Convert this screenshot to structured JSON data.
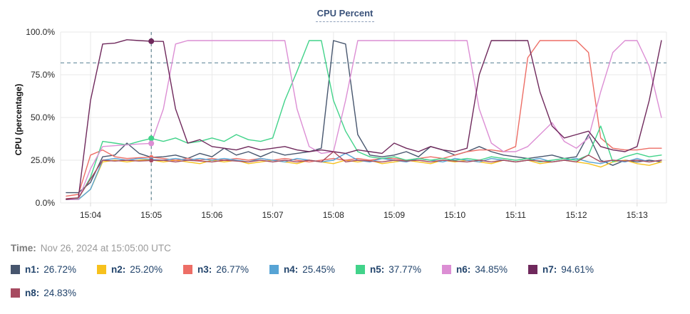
{
  "panel": {
    "title": "CPU Percent"
  },
  "time_row": {
    "label": "Time:",
    "value": "Nov 26, 2024 at 15:05:00 UTC"
  },
  "legend": [
    {
      "name": "n1:",
      "value": "26.72%",
      "color": "#47566e"
    },
    {
      "name": "n2:",
      "value": "25.20%",
      "color": "#f7c11d"
    },
    {
      "name": "n3:",
      "value": "26.77%",
      "color": "#ed6e66"
    },
    {
      "name": "n4:",
      "value": "25.45%",
      "color": "#57a4d5"
    },
    {
      "name": "n5:",
      "value": "37.77%",
      "color": "#42d38a"
    },
    {
      "name": "n6:",
      "value": "34.85%",
      "color": "#dc8ed4"
    },
    {
      "name": "n7:",
      "value": "94.61%",
      "color": "#6f295c"
    },
    {
      "name": "n8:",
      "value": "24.83%",
      "color": "#a64a60"
    }
  ],
  "chart_data": {
    "type": "line",
    "title": "CPU Percent",
    "ylabel": "CPU (percentage)",
    "xlabel": "",
    "ylim": [
      0,
      100
    ],
    "grid": true,
    "legend_position": "bottom",
    "threshold_percent": 82,
    "crosshair_minute": 5.0,
    "crosshair_time": "15:05:00",
    "yticks": [
      {
        "v": 0,
        "label": "0.0%"
      },
      {
        "v": 25,
        "label": "25.0%"
      },
      {
        "v": 50,
        "label": "50.0%"
      },
      {
        "v": 75,
        "label": "75.0%"
      },
      {
        "v": 100,
        "label": "100.0%"
      }
    ],
    "xticks": [
      {
        "m": 4,
        "label": "15:04"
      },
      {
        "m": 5,
        "label": "15:05"
      },
      {
        "m": 6,
        "label": "15:06"
      },
      {
        "m": 7,
        "label": "15:07"
      },
      {
        "m": 8,
        "label": "15:08"
      },
      {
        "m": 9,
        "label": "15:09"
      },
      {
        "m": 10,
        "label": "15:10"
      },
      {
        "m": 11,
        "label": "15:11"
      },
      {
        "m": 12,
        "label": "15:12"
      },
      {
        "m": 13,
        "label": "15:13"
      }
    ],
    "x_minutes": [
      3.6,
      3.8,
      4.0,
      4.2,
      4.4,
      4.6,
      4.8,
      5.0,
      5.2,
      5.4,
      5.6,
      5.8,
      6.0,
      6.2,
      6.4,
      6.6,
      6.8,
      7.0,
      7.2,
      7.4,
      7.6,
      7.8,
      8.0,
      8.2,
      8.4,
      8.6,
      8.8,
      9.0,
      9.2,
      9.4,
      9.6,
      9.8,
      10.0,
      10.2,
      10.4,
      10.6,
      10.8,
      11.0,
      11.2,
      11.4,
      11.6,
      11.8,
      12.0,
      12.2,
      12.4,
      12.6,
      12.8,
      13.0,
      13.2,
      13.4
    ],
    "series": [
      {
        "name": "n1",
        "color": "#47566e",
        "value_at_crosshair": 26.72,
        "values": [
          6,
          6,
          12,
          27,
          28,
          35,
          29,
          26.72,
          27,
          28,
          26,
          29,
          27,
          32,
          28,
          30,
          27,
          30,
          28,
          29,
          30,
          32,
          95,
          93,
          40,
          28,
          27,
          28,
          30,
          27,
          33,
          31,
          28,
          30,
          33,
          30,
          28,
          27,
          26,
          27,
          28,
          26,
          27,
          40,
          25,
          22,
          25,
          24,
          25,
          24
        ]
      },
      {
        "name": "n2",
        "color": "#f7c11d",
        "value_at_crosshair": 25.2,
        "values": [
          2,
          2,
          8,
          24,
          25,
          24,
          25,
          25.2,
          24,
          25,
          24,
          23,
          25,
          24,
          25,
          23,
          24,
          25,
          24,
          23,
          25,
          24,
          23,
          25,
          24,
          25,
          23,
          24,
          25,
          24,
          23,
          25,
          24,
          25,
          24,
          23,
          25,
          24,
          25,
          23,
          24,
          25,
          24,
          23,
          21,
          24,
          25,
          23,
          22,
          24
        ]
      },
      {
        "name": "n3",
        "color": "#ed6e66",
        "value_at_crosshair": 26.77,
        "values": [
          4,
          5,
          28,
          31,
          27,
          26,
          26.5,
          26.77,
          26,
          25,
          26,
          25,
          26,
          25,
          26,
          25,
          26,
          25,
          26,
          25,
          24,
          25,
          26,
          25,
          26,
          25,
          26,
          26,
          25,
          26,
          27,
          26,
          28,
          30,
          31,
          31,
          30,
          33,
          85,
          95,
          95,
          95,
          95,
          88,
          38,
          32,
          31,
          31,
          32,
          32
        ]
      },
      {
        "name": "n4",
        "color": "#57a4d5",
        "value_at_crosshair": 25.45,
        "values": [
          2,
          2,
          8,
          25,
          26,
          25,
          26,
          25.45,
          25,
          26,
          25,
          26,
          25,
          26,
          25,
          24,
          26,
          25,
          24,
          26,
          25,
          24,
          25,
          29,
          25,
          24,
          26,
          25,
          24,
          26,
          25,
          24,
          26,
          25,
          24,
          26,
          25,
          24,
          25,
          26,
          24,
          25,
          26,
          24,
          23,
          25,
          24,
          26,
          24,
          25
        ]
      },
      {
        "name": "n5",
        "color": "#42d38a",
        "value_at_crosshair": 37.77,
        "values": [
          2,
          2.5,
          15,
          36,
          35,
          34,
          36,
          37.77,
          36,
          38,
          35,
          36,
          38,
          36,
          40,
          37,
          36,
          38,
          60,
          77,
          95,
          95,
          60,
          42,
          30,
          27,
          26,
          27,
          25,
          26,
          25,
          26,
          25,
          26,
          25,
          27,
          26,
          25,
          26,
          24,
          25,
          26,
          25,
          28,
          45,
          24,
          27,
          29,
          27,
          28
        ]
      },
      {
        "name": "n6",
        "color": "#dc8ed4",
        "value_at_crosshair": 34.85,
        "values": [
          2,
          2,
          20,
          33,
          33.5,
          34,
          34.5,
          34.85,
          55,
          93,
          95,
          95,
          95,
          95,
          95,
          95,
          95,
          95,
          95,
          55,
          33,
          29,
          30,
          60,
          95,
          95,
          95,
          95,
          95,
          95,
          95,
          95,
          95,
          95,
          55,
          35,
          30,
          30,
          33,
          40,
          47,
          36,
          32,
          38,
          65,
          88,
          95,
          95,
          80,
          50
        ]
      },
      {
        "name": "n7",
        "color": "#6f295c",
        "value_at_crosshair": 94.61,
        "values": [
          2,
          3,
          60,
          93,
          93.5,
          95.5,
          95,
          94.61,
          94.5,
          55,
          35,
          37,
          33,
          32,
          31,
          33,
          31,
          32,
          33,
          31,
          30,
          31,
          30,
          29,
          31,
          30,
          29,
          35,
          32,
          30,
          33,
          31,
          30,
          32,
          75,
          95,
          95,
          95,
          95,
          65,
          45,
          38,
          40,
          42,
          33,
          31,
          30,
          33,
          60,
          95
        ]
      },
      {
        "name": "n8",
        "color": "#a64a60",
        "value_at_crosshair": 24.83,
        "values": [
          2.5,
          3,
          14,
          25,
          24.5,
          25,
          24.5,
          24.83,
          25,
          24,
          25,
          24.5,
          24,
          25,
          24.5,
          24,
          25,
          24,
          25,
          24,
          25,
          24,
          30,
          24,
          25,
          24.5,
          24,
          25,
          24.5,
          25,
          24,
          25,
          24.5,
          24,
          25,
          24,
          25,
          24,
          25,
          24.5,
          24,
          25,
          24,
          28,
          24,
          25,
          24.5,
          25,
          24,
          25
        ]
      }
    ]
  }
}
